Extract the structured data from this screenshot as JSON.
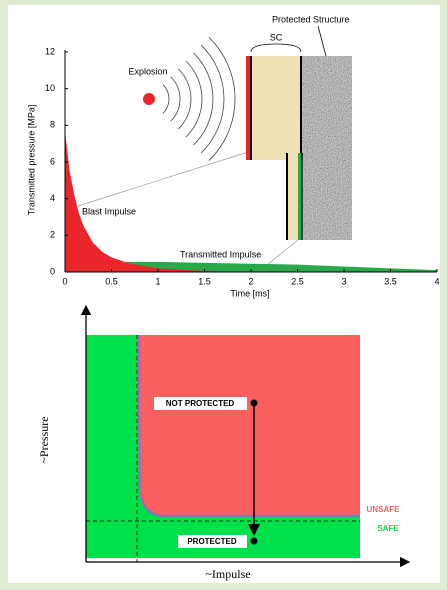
{
  "chart_data": [
    {
      "type": "area",
      "x_label": "Time [ms]",
      "y_label": "Transmitted pressure [MPa]",
      "x": [
        0,
        0.05,
        0.1,
        0.15,
        0.2,
        0.3,
        0.4,
        0.5,
        0.7,
        1,
        1.5,
        2,
        2.5,
        3,
        3.5,
        4
      ],
      "series": [
        {
          "name": "Transmitted Impulse",
          "color": "#2aa84a",
          "values": [
            0,
            0.3,
            0.5,
            0.55,
            0.55,
            0.55,
            0.55,
            0.55,
            0.55,
            0.55,
            0.5,
            0.45,
            0.4,
            0.3,
            0.2,
            0.1
          ]
        },
        {
          "name": "Blast Impulse",
          "color": "#e8262b",
          "values": [
            7.7,
            5.5,
            4.2,
            3.2,
            2.5,
            1.6,
            1.1,
            0.8,
            0.45,
            0.2,
            0.05,
            0,
            0,
            0,
            0,
            0
          ]
        }
      ],
      "xlim": [
        0,
        4
      ],
      "xticks": [
        0,
        0.5,
        1,
        1.5,
        2,
        2.5,
        3,
        3.5,
        4
      ],
      "ylim": [
        0,
        12
      ],
      "yticks": [
        0,
        2,
        4,
        6,
        8,
        10,
        12
      ],
      "annotations": {
        "explosion": "Explosion",
        "sc": "SC",
        "protected_structure": "Protected Structure"
      }
    },
    {
      "type": "pressure-impulse",
      "x_label": "~Impulse",
      "y_label": "~Pressure",
      "labels": {
        "not_protected": "NOT PROTECTED",
        "protected": "PROTECTED",
        "unsafe": "UNSAFE",
        "safe": "SAFE"
      },
      "colors": {
        "safe": "#00e04a",
        "unsafe": "#f95f5e"
      }
    }
  ]
}
